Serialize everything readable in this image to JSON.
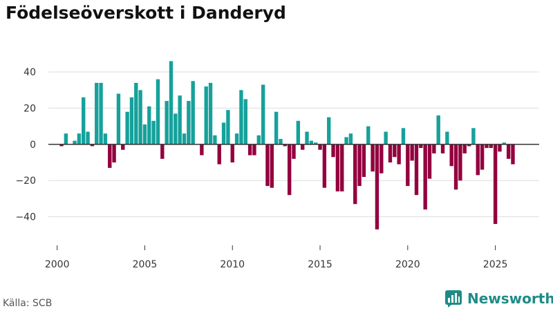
{
  "title": "Födelseöverskott i Danderyd",
  "source": "Källa: SCB",
  "brand": {
    "name": "Newsworthy"
  },
  "colors": {
    "positive": "#16a19b",
    "negative": "#93003e",
    "grid": "#dddddd",
    "zero_line": "#333333",
    "brand": "#1e8c86"
  },
  "chart_data": {
    "type": "bar",
    "title": "Födelseöverskott i Danderyd",
    "xlabel": "",
    "ylabel": "",
    "ylim": [
      -52,
      50
    ],
    "xlim": [
      1999.5,
      2027.5
    ],
    "y_ticks": [
      -40,
      -20,
      0,
      20,
      40
    ],
    "y_tick_labels": [
      "−40",
      "−20",
      "0",
      "20",
      "40"
    ],
    "x_ticks": [
      2000,
      2005,
      2010,
      2015,
      2020,
      2025
    ],
    "x_tick_labels": [
      "2000",
      "2005",
      "2010",
      "2015",
      "2020",
      "2025"
    ],
    "grid": true,
    "frequency": "quarterly",
    "start_year": 2000,
    "values": [
      0,
      -1,
      6,
      0,
      2,
      6,
      26,
      7,
      -1,
      34,
      34,
      6,
      -13,
      -10,
      28,
      -3,
      18,
      26,
      34,
      30,
      11,
      21,
      13,
      36,
      -8,
      24,
      46,
      17,
      27,
      6,
      24,
      35,
      0,
      -6,
      32,
      34,
      5,
      -11,
      12,
      19,
      -10,
      6,
      30,
      25,
      -6,
      -6,
      5,
      33,
      -23,
      -24,
      18,
      3,
      -1,
      -28,
      -8,
      13,
      -3,
      7,
      2,
      1,
      -3,
      -24,
      15,
      -7,
      -26,
      -26,
      4,
      6,
      -33,
      -23,
      -18,
      10,
      -15,
      -47,
      -16,
      7,
      -10,
      -7,
      -11,
      9,
      -23,
      -9,
      -28,
      -2,
      -36,
      -19,
      -5,
      16,
      -5,
      7,
      -12,
      -25,
      -20,
      -5,
      -1,
      9,
      -17,
      -14,
      -2,
      -2,
      -44,
      -4,
      1,
      -8,
      -11
    ]
  }
}
